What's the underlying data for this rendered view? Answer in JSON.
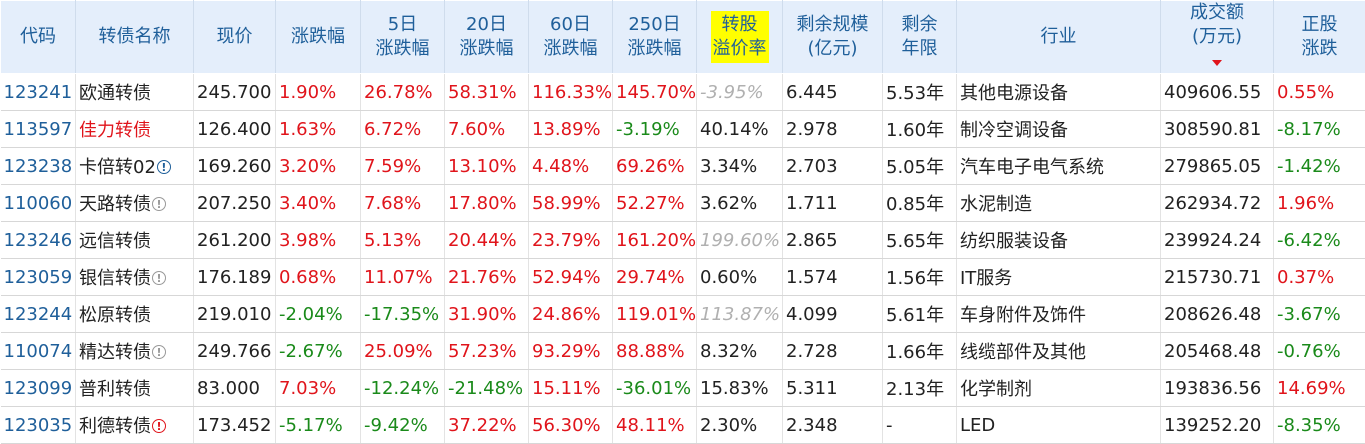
{
  "headers": {
    "code": "代码",
    "name": "转债名称",
    "price": "现价",
    "change": "涨跌幅",
    "d5_l1": "5日",
    "d5_l2": "涨跌幅",
    "d20_l1": "20日",
    "d20_l2": "涨跌幅",
    "d60_l1": "60日",
    "d60_l2": "涨跌幅",
    "d250_l1": "250日",
    "d250_l2": "涨跌幅",
    "prem_l1": "转股",
    "prem_l2": "溢价率",
    "scale_l1": "剩余规模",
    "scale_l2": "(亿元)",
    "years_l1": "剩余",
    "years_l2": "年限",
    "industry": "行业",
    "vol_l1": "成交额",
    "vol_l2": "(万元)",
    "stock_l1": "正股",
    "stock_l2": "涨跌"
  },
  "colors": {
    "up": "#e0141b",
    "down": "#1a8a1a",
    "header_bg": "#e4eefb",
    "header_text": "#1f5f9a",
    "highlight": "#ffff00"
  },
  "rows": [
    {
      "code": "123241",
      "name": "欧通转债",
      "name_red": false,
      "icon": "",
      "price": "245.700",
      "change": "1.90%",
      "d5": "26.78%",
      "d20": "58.31%",
      "d60": "116.33%",
      "d250": "145.70%",
      "prem": "-3.95%",
      "prem_grey": true,
      "scale": "6.445",
      "years": "5.53年",
      "industry": "其他电源设备",
      "vol": "409606.55",
      "stock": "0.55%"
    },
    {
      "code": "113597",
      "name": "佳力转债",
      "name_red": true,
      "icon": "",
      "price": "126.400",
      "change": "1.63%",
      "d5": "6.72%",
      "d20": "7.60%",
      "d60": "13.89%",
      "d250": "-3.19%",
      "prem": "40.14%",
      "prem_grey": false,
      "scale": "2.978",
      "years": "1.60年",
      "industry": "制冷空调设备",
      "vol": "308590.81",
      "stock": "-8.17%"
    },
    {
      "code": "123238",
      "name": "卡倍转02",
      "name_red": false,
      "icon": "blue",
      "price": "169.260",
      "change": "3.20%",
      "d5": "7.59%",
      "d20": "13.10%",
      "d60": "4.48%",
      "d250": "69.26%",
      "prem": "3.34%",
      "prem_grey": false,
      "scale": "2.703",
      "years": "5.05年",
      "industry": "汽车电子电气系统",
      "vol": "279865.05",
      "stock": "-1.42%"
    },
    {
      "code": "110060",
      "name": "天路转债",
      "name_red": false,
      "icon": "grey",
      "price": "207.250",
      "change": "3.40%",
      "d5": "7.68%",
      "d20": "17.80%",
      "d60": "58.99%",
      "d250": "52.27%",
      "prem": "3.62%",
      "prem_grey": false,
      "scale": "1.711",
      "years": "0.85年",
      "industry": "水泥制造",
      "vol": "262934.72",
      "stock": "1.96%"
    },
    {
      "code": "123246",
      "name": "远信转债",
      "name_red": false,
      "icon": "",
      "price": "261.200",
      "change": "3.98%",
      "d5": "5.13%",
      "d20": "20.44%",
      "d60": "23.79%",
      "d250": "161.20%",
      "prem": "199.60%",
      "prem_grey": true,
      "scale": "2.865",
      "years": "5.65年",
      "industry": "纺织服装设备",
      "vol": "239924.24",
      "stock": "-6.42%"
    },
    {
      "code": "123059",
      "name": "银信转债",
      "name_red": false,
      "icon": "grey",
      "price": "176.189",
      "change": "0.68%",
      "d5": "11.07%",
      "d20": "21.76%",
      "d60": "52.94%",
      "d250": "29.74%",
      "prem": "0.60%",
      "prem_grey": false,
      "scale": "1.574",
      "years": "1.56年",
      "industry": "IT服务",
      "vol": "215730.71",
      "stock": "0.37%"
    },
    {
      "code": "123244",
      "name": "松原转债",
      "name_red": false,
      "icon": "",
      "price": "219.010",
      "change": "-2.04%",
      "d5": "-17.35%",
      "d20": "31.90%",
      "d60": "24.86%",
      "d250": "119.01%",
      "prem": "113.87%",
      "prem_grey": true,
      "scale": "4.099",
      "years": "5.61年",
      "industry": "车身附件及饰件",
      "vol": "208626.48",
      "stock": "-3.67%"
    },
    {
      "code": "110074",
      "name": "精达转债",
      "name_red": false,
      "icon": "grey",
      "price": "249.766",
      "change": "-2.67%",
      "d5": "25.09%",
      "d20": "57.23%",
      "d60": "93.29%",
      "d250": "88.88%",
      "prem": "8.32%",
      "prem_grey": false,
      "scale": "2.728",
      "years": "1.66年",
      "industry": "线缆部件及其他",
      "vol": "205468.48",
      "stock": "-0.76%"
    },
    {
      "code": "123099",
      "name": "普利转债",
      "name_red": false,
      "icon": "",
      "price": "83.000",
      "change": "7.03%",
      "d5": "-12.24%",
      "d20": "-21.48%",
      "d60": "15.11%",
      "d250": "-36.01%",
      "prem": "15.83%",
      "prem_grey": false,
      "scale": "5.311",
      "years": "2.13年",
      "industry": "化学制剂",
      "vol": "193836.56",
      "stock": "14.69%"
    },
    {
      "code": "123035",
      "name": "利德转债",
      "name_red": false,
      "icon": "red",
      "price": "173.452",
      "change": "-5.17%",
      "d5": "-9.42%",
      "d20": "37.22%",
      "d60": "56.30%",
      "d250": "48.11%",
      "prem": "2.30%",
      "prem_grey": false,
      "scale": "2.348",
      "years": "-",
      "industry": "LED",
      "vol": "139252.20",
      "stock": "-8.35%"
    }
  ]
}
